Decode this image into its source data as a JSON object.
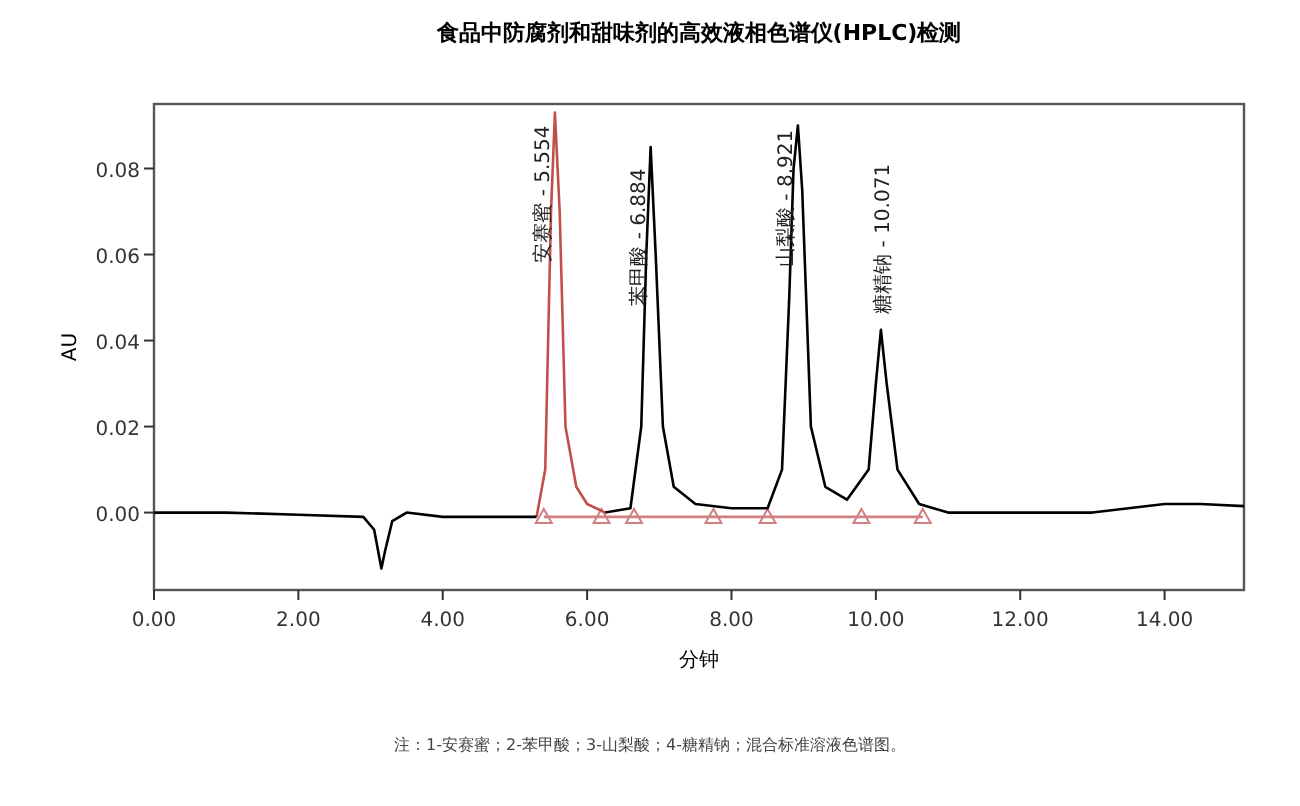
{
  "chart_data": {
    "type": "line",
    "title": "食品中防腐剂和甜味剂的高效液相色谱仪(HPLC)检测",
    "xlabel": "分钟",
    "ylabel": "AU",
    "xlim": [
      0,
      15.1
    ],
    "ylim": [
      -0.018,
      0.095
    ],
    "xticks": [
      {
        "value": 0,
        "label": "0.00"
      },
      {
        "value": 2,
        "label": "2.00"
      },
      {
        "value": 4,
        "label": "4.00"
      },
      {
        "value": 6,
        "label": "6.00"
      },
      {
        "value": 8,
        "label": "8.00"
      },
      {
        "value": 10,
        "label": "10.00"
      },
      {
        "value": 12,
        "label": "12.00"
      },
      {
        "value": 14,
        "label": "14.00"
      }
    ],
    "yticks": [
      {
        "value": 0,
        "label": "0.00"
      },
      {
        "value": 0.02,
        "label": "0.02"
      },
      {
        "value": 0.04,
        "label": "0.04"
      },
      {
        "value": 0.06,
        "label": "0.06"
      },
      {
        "value": 0.08,
        "label": "0.08"
      }
    ],
    "grid": false,
    "series": [
      {
        "color": "#000000",
        "x": [
          0,
          1,
          2,
          2.9,
          3.05,
          3.15,
          3.2,
          3.3,
          3.5,
          4,
          5,
          5.3
        ],
        "values": [
          0,
          0,
          -0.0005,
          -0.001,
          -0.004,
          -0.013,
          -0.009,
          -0.002,
          0,
          -0.001,
          -0.001,
          -0.001
        ]
      },
      {
        "color": "#000000",
        "x": [
          6.25,
          6.6,
          6.75,
          6.82,
          6.88,
          6.95,
          7.05,
          7.2,
          7.5,
          8,
          8.5,
          8.7,
          8.8,
          8.86,
          8.92,
          8.98,
          9.1,
          9.3,
          9.6,
          9.9,
          10.0,
          10.07,
          10.15,
          10.3,
          10.6,
          11,
          12,
          13,
          13.5,
          14,
          14.5,
          15.1
        ],
        "values": [
          0,
          0.001,
          0.02,
          0.06,
          0.085,
          0.06,
          0.02,
          0.006,
          0.002,
          0.001,
          0.001,
          0.01,
          0.05,
          0.08,
          0.09,
          0.075,
          0.02,
          0.006,
          0.003,
          0.01,
          0.03,
          0.0425,
          0.03,
          0.01,
          0.002,
          0,
          0,
          0,
          0.001,
          0.002,
          0.002,
          0.0015
        ]
      },
      {
        "color": "#c0504d",
        "x": [
          5.3,
          5.42,
          5.5,
          5.554,
          5.62,
          5.7,
          5.85,
          6.0,
          6.25
        ],
        "values": [
          -0.001,
          0.01,
          0.07,
          0.093,
          0.07,
          0.02,
          0.006,
          0.002,
          0
        ]
      },
      {
        "color": "#d08080",
        "marker": "triangle",
        "x": [
          5.4,
          6.2,
          6.65,
          7.75,
          8.5,
          9.8,
          10.65
        ],
        "values": [
          -0.001,
          -0.001,
          -0.001,
          -0.001,
          -0.001,
          -0.001,
          -0.001
        ]
      }
    ],
    "annotations": [
      {
        "text": "安赛蜜 - 5.554",
        "x": 5.554,
        "y": 0.09
      },
      {
        "text": "苯甲酸 - 6.884",
        "x": 6.884,
        "y": 0.08
      },
      {
        "text": "山梨酸 - 8.921",
        "x": 8.921,
        "y": 0.089
      },
      {
        "text": "糖精钠 - 10.071",
        "x": 10.071,
        "y": 0.0425
      },
      "注：1-安赛蜜；2-苯甲酸；3-山梨酸；4-糖精钠；混合标准溶液色谱图。"
    ]
  }
}
